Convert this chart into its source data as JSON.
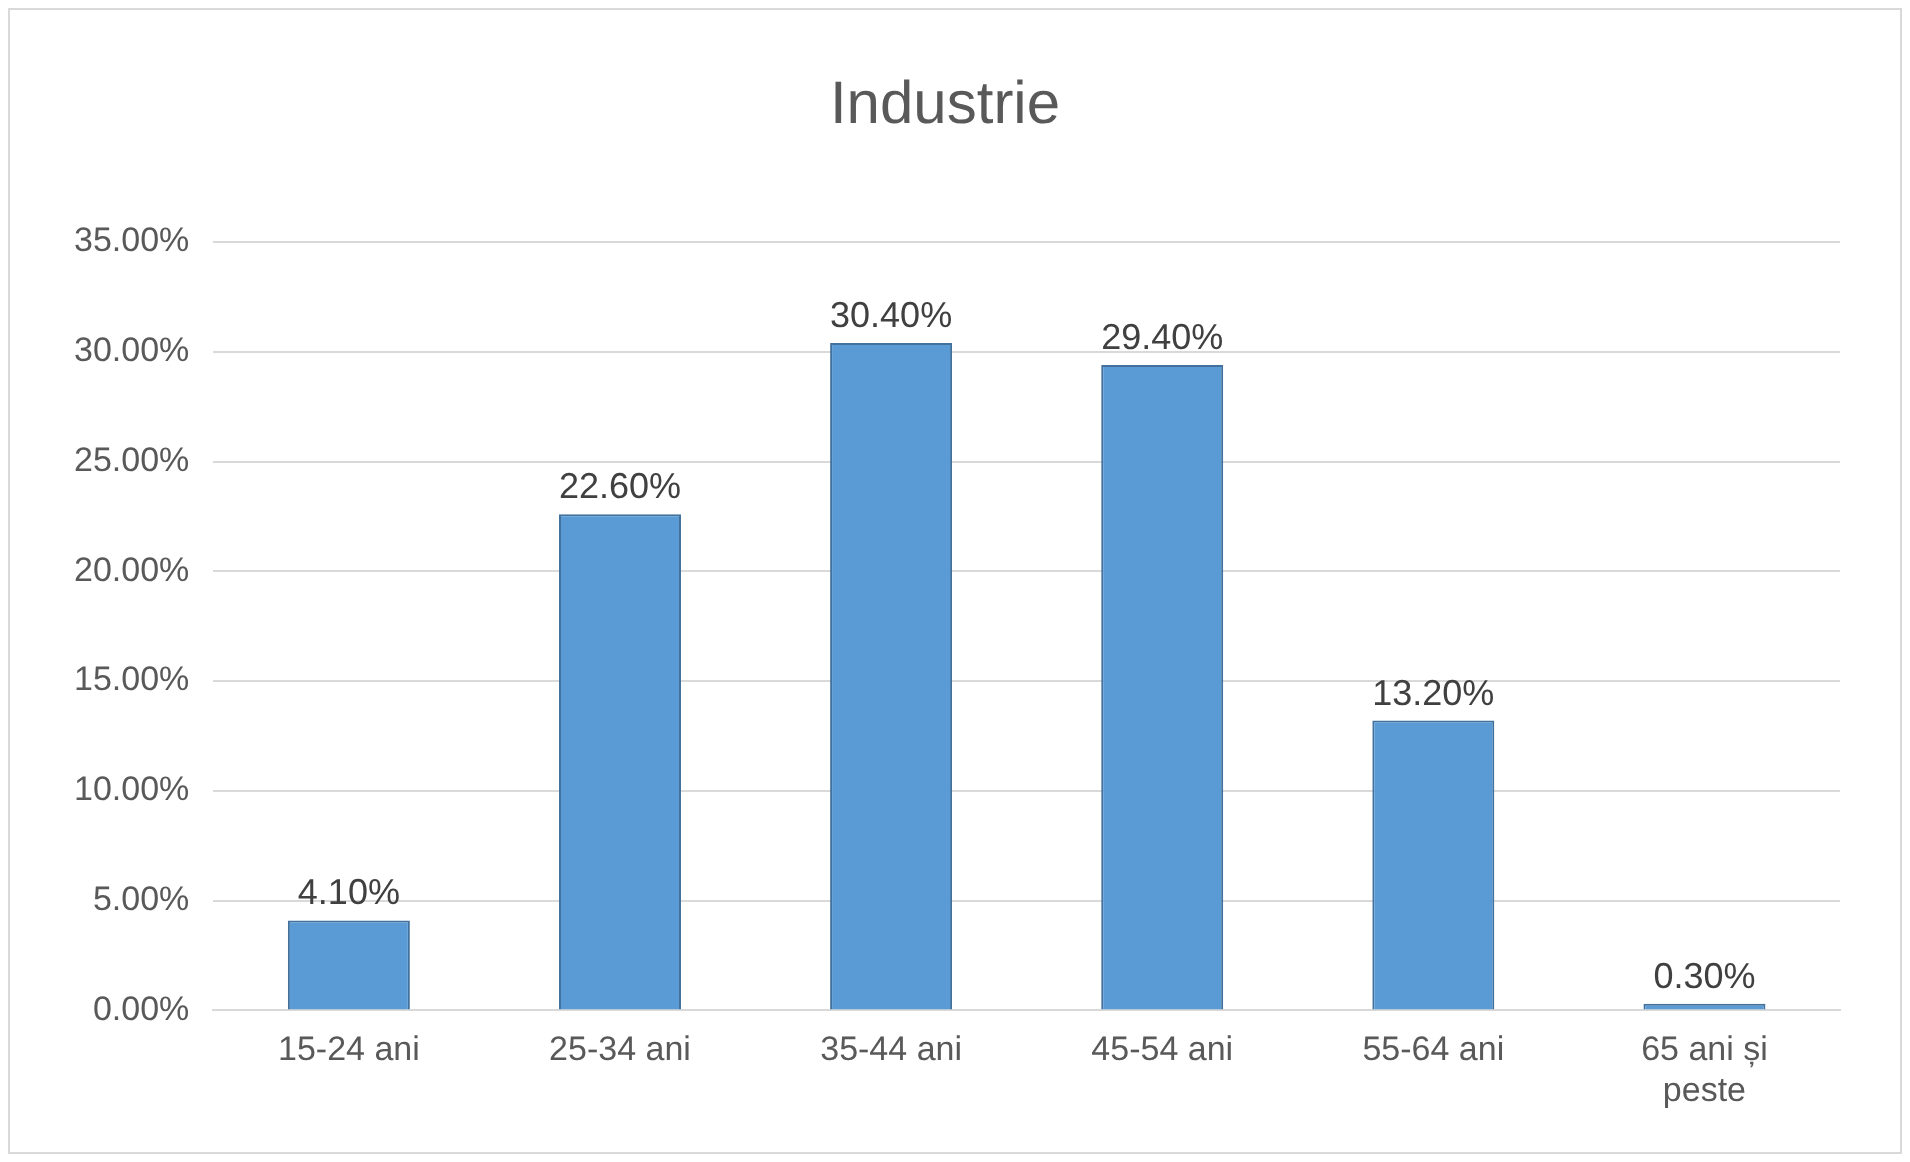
{
  "chart_data": {
    "type": "bar",
    "title": "Industrie",
    "categories": [
      "15-24 ani",
      "25-34 ani",
      "35-44 ani",
      "45-54 ani",
      "55-64 ani",
      "65 ani și peste"
    ],
    "values": [
      4.1,
      22.6,
      30.4,
      29.4,
      13.2,
      0.3
    ],
    "value_labels": [
      "4.10%",
      "22.60%",
      "30.40%",
      "29.40%",
      "13.20%",
      "0.30%"
    ],
    "color": "#5b9bd5",
    "ylim": [
      0,
      35
    ],
    "yticks": [
      {
        "value": 0,
        "label": "0.00%"
      },
      {
        "value": 5,
        "label": "5.00%"
      },
      {
        "value": 10,
        "label": "10.00%"
      },
      {
        "value": 15,
        "label": "15.00%"
      },
      {
        "value": 20,
        "label": "20.00%"
      },
      {
        "value": 25,
        "label": "25.00%"
      },
      {
        "value": 30,
        "label": "30.00%"
      },
      {
        "value": 35,
        "label": "35.00%"
      }
    ],
    "grid": "y",
    "legend": false
  }
}
